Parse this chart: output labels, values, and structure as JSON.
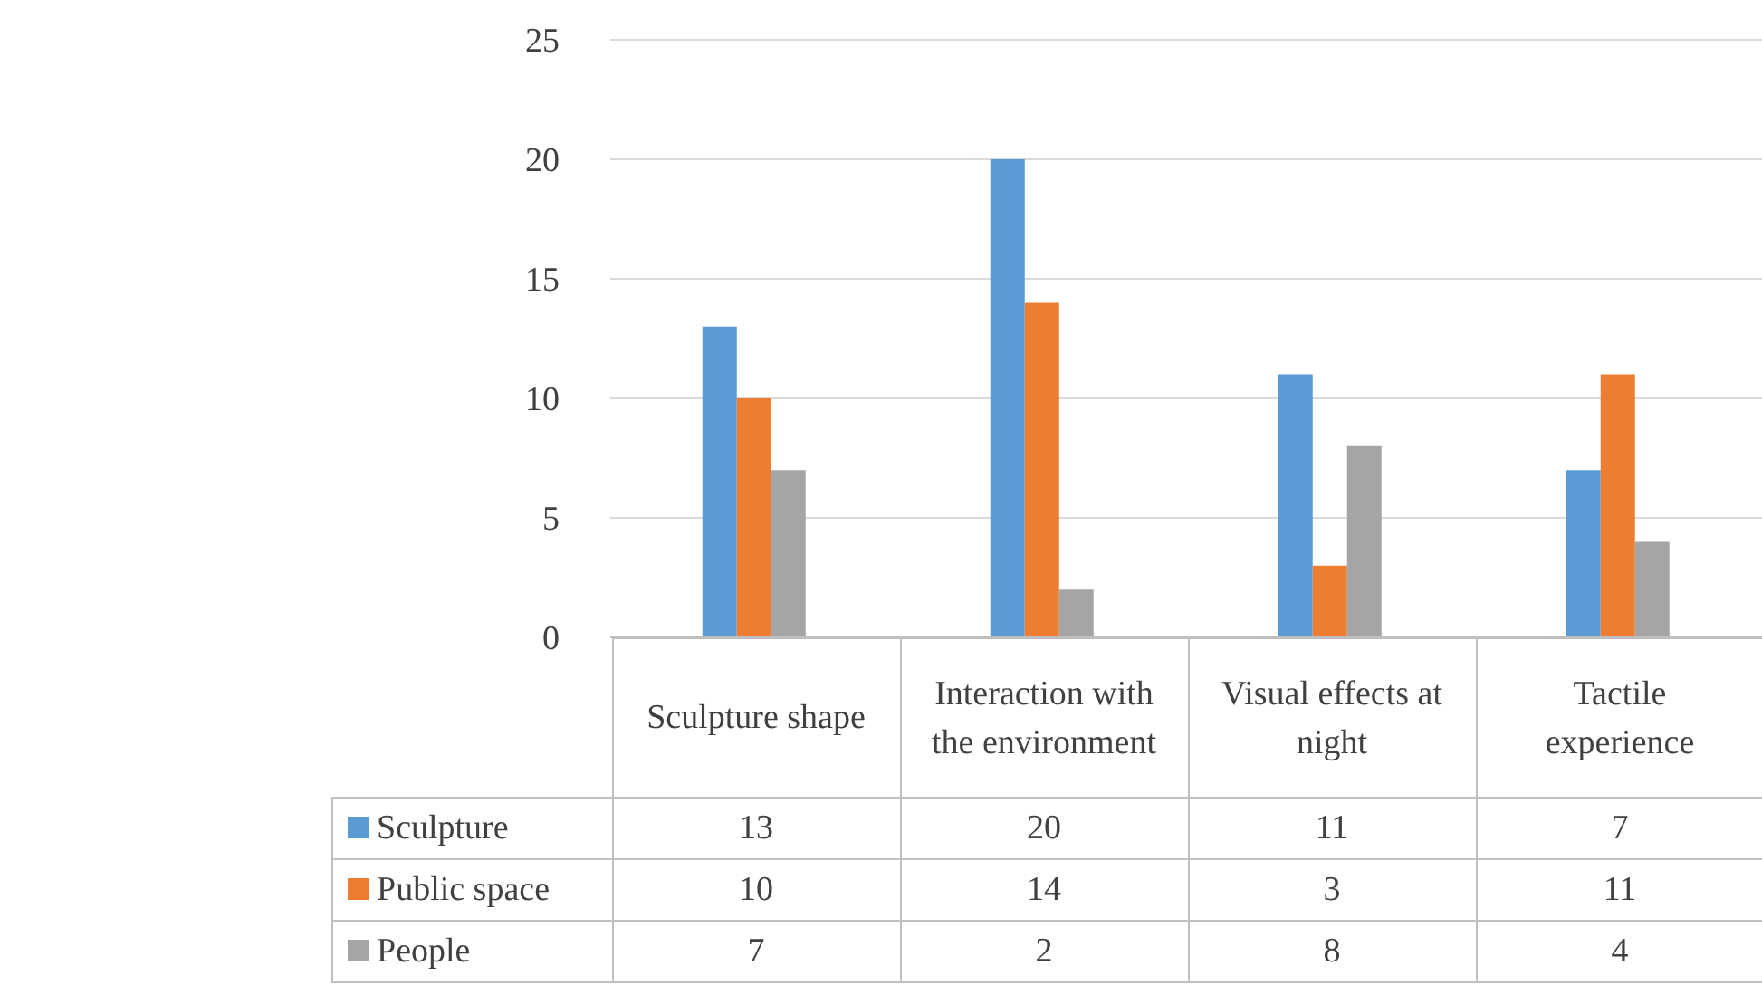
{
  "chart_data": {
    "type": "bar",
    "categories": [
      "Sculpture shape",
      "Interaction with the environment",
      "Visual effects at night",
      "Tactile experience"
    ],
    "series": [
      {
        "name": "Sculpture",
        "color": "#5b9bd5",
        "values": [
          13,
          20,
          11,
          7
        ]
      },
      {
        "name": "Public space",
        "color": "#ed7d31",
        "values": [
          10,
          14,
          3,
          11
        ]
      },
      {
        "name": "People",
        "color": "#a5a5a5",
        "values": [
          7,
          2,
          8,
          4
        ]
      }
    ],
    "ylim": [
      0,
      25
    ],
    "yticks": [
      0,
      5,
      10,
      15,
      20,
      25
    ],
    "grid": "y",
    "legend": "bottom",
    "data_labels": true
  }
}
